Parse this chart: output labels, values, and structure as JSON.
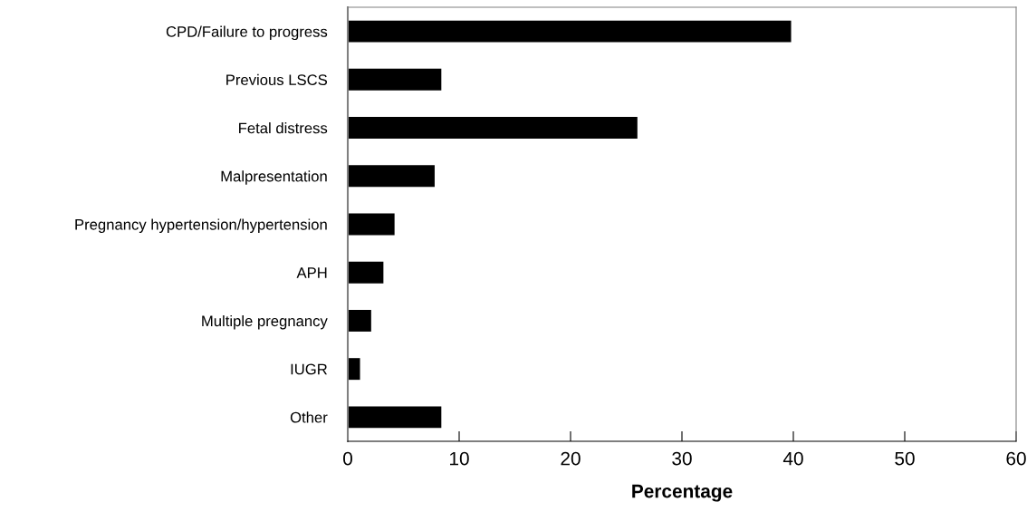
{
  "chart_data": {
    "type": "bar",
    "orientation": "horizontal",
    "xlabel": "Percentage",
    "categories": [
      "CPD/Failure to progress",
      "Previous LSCS",
      "Fetal distress",
      "Malpresentation",
      "Pregnancy hypertension/hypertension",
      "APH",
      "Multiple pregnancy",
      "IUGR",
      "Other"
    ],
    "values": [
      39.8,
      8.4,
      26.0,
      7.8,
      4.2,
      3.2,
      2.1,
      1.1,
      8.4
    ],
    "color": "#000000",
    "xlim": [
      0,
      60
    ],
    "xticks": [
      0,
      10,
      20,
      30,
      40,
      50,
      60
    ],
    "grid": false,
    "legend": false
  }
}
